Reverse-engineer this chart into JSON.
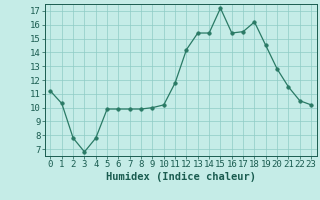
{
  "x": [
    0,
    1,
    2,
    3,
    4,
    5,
    6,
    7,
    8,
    9,
    10,
    11,
    12,
    13,
    14,
    15,
    16,
    17,
    18,
    19,
    20,
    21,
    22,
    23
  ],
  "y": [
    11.2,
    10.3,
    7.8,
    6.8,
    7.8,
    9.9,
    9.9,
    9.9,
    9.9,
    10.0,
    10.2,
    11.8,
    14.2,
    15.4,
    15.4,
    17.2,
    15.4,
    15.5,
    16.2,
    14.5,
    12.8,
    11.5,
    10.5,
    10.2
  ],
  "xlabel": "Humidex (Indice chaleur)",
  "xlim": [
    -0.5,
    23.5
  ],
  "ylim": [
    6.5,
    17.5
  ],
  "yticks": [
    7,
    8,
    9,
    10,
    11,
    12,
    13,
    14,
    15,
    16,
    17
  ],
  "xticks": [
    0,
    1,
    2,
    3,
    4,
    5,
    6,
    7,
    8,
    9,
    10,
    11,
    12,
    13,
    14,
    15,
    16,
    17,
    18,
    19,
    20,
    21,
    22,
    23
  ],
  "line_color": "#2a7a65",
  "marker": ".",
  "marker_size": 4,
  "bg_color": "#c5ece7",
  "grid_color": "#8fccc5",
  "text_color": "#1a5c50",
  "tick_label_fontsize": 6.5,
  "xlabel_fontsize": 7.5
}
